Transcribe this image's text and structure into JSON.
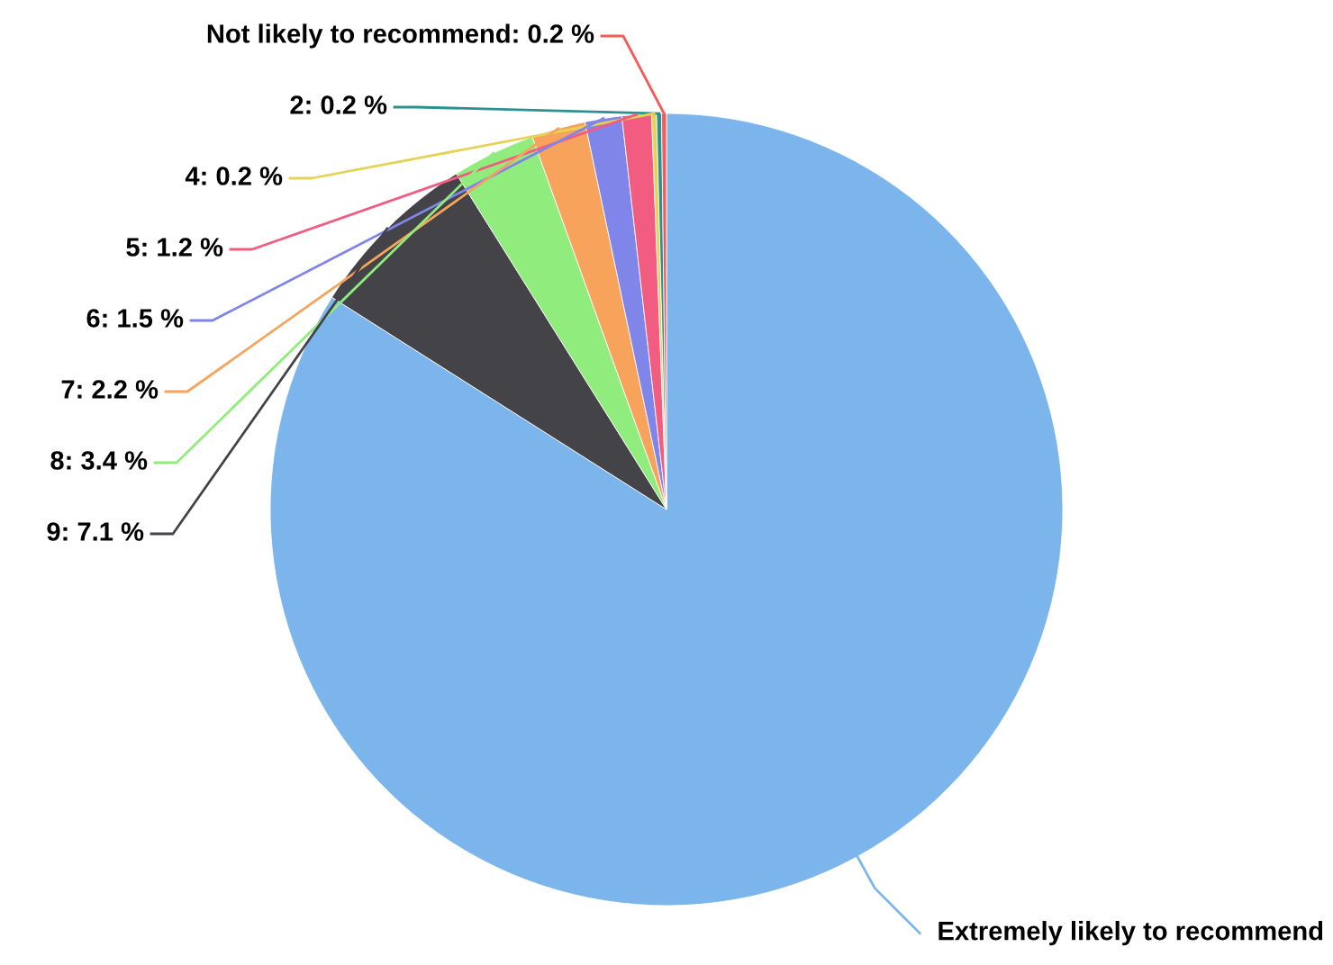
{
  "chart_data": {
    "type": "pie",
    "categories": [
      "Extremely likely to recommend",
      "9",
      "8",
      "7",
      "6",
      "5",
      "4",
      "2",
      "Not likely to recommend"
    ],
    "values": [
      84.0,
      7.1,
      3.4,
      2.2,
      1.5,
      1.2,
      0.2,
      0.2,
      0.2
    ],
    "value_labels": [
      null,
      "7.1 %",
      "3.4 %",
      "2.2 %",
      "1.5 %",
      "1.2 %",
      "0.2 %",
      "0.2 %",
      "0.2 %"
    ],
    "colors": [
      "#7cb5ec",
      "#434348",
      "#90ed7d",
      "#f7a35c",
      "#8085e9",
      "#f15c80",
      "#e4d354",
      "#2b908f",
      "#f45b5b"
    ],
    "legend": false
  }
}
